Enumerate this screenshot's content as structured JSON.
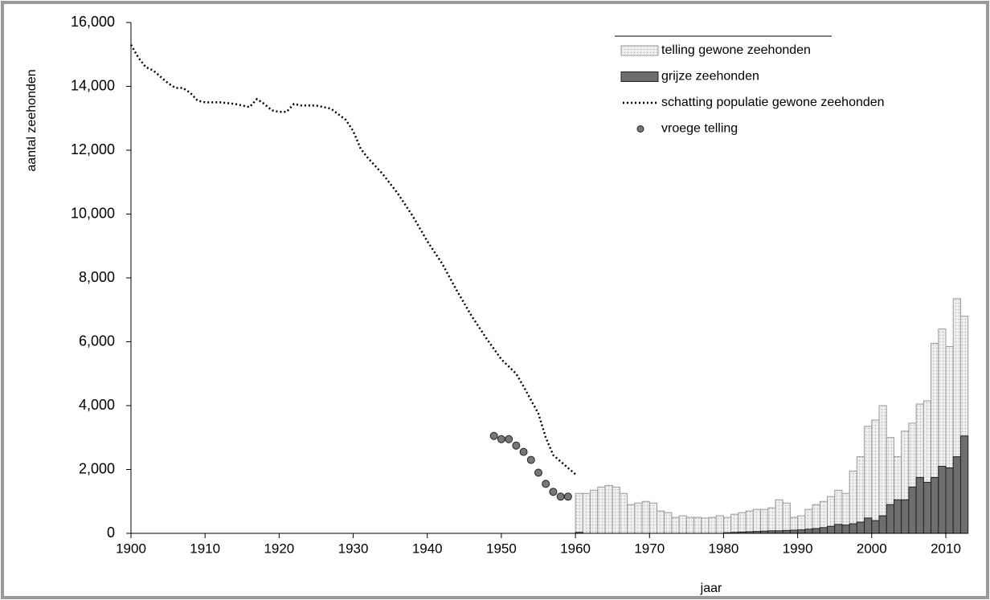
{
  "chart_data": {
    "type": "mixed",
    "y_label": "aantal zeehonden",
    "x_label": "jaar",
    "xlim": [
      1900,
      2013
    ],
    "ylim": [
      0,
      16000
    ],
    "xticks": [
      1900,
      1910,
      1920,
      1930,
      1940,
      1950,
      1960,
      1970,
      1980,
      1990,
      2000,
      2010
    ],
    "yticks": [
      0,
      {
        "value": 2000,
        "label": "2,000"
      },
      {
        "value": 4000,
        "label": "4,000"
      },
      {
        "value": 6000,
        "label": "6,000"
      },
      {
        "value": 8000,
        "label": "8,000"
      },
      {
        "value": 10000,
        "label": "10,000"
      },
      {
        "value": 12000,
        "label": "12,000"
      },
      {
        "value": 14000,
        "label": "14,000"
      },
      {
        "value": 16000,
        "label": "16,000"
      }
    ],
    "legend": "top-right",
    "series": [
      {
        "name": "telling gewone zeehonden",
        "kind": "bar",
        "color": "#e6e6e6",
        "x": [
          1960,
          1961,
          1962,
          1963,
          1964,
          1965,
          1966,
          1967,
          1968,
          1969,
          1970,
          1971,
          1972,
          1973,
          1974,
          1975,
          1976,
          1977,
          1978,
          1979,
          1980,
          1981,
          1982,
          1983,
          1984,
          1985,
          1986,
          1987,
          1988,
          1989,
          1990,
          1991,
          1992,
          1993,
          1994,
          1995,
          1996,
          1997,
          1998,
          1999,
          2000,
          2001,
          2002,
          2003,
          2004,
          2005,
          2006,
          2007,
          2008,
          2009,
          2010,
          2011,
          2012
        ],
        "values": [
          1250,
          1250,
          1350,
          1450,
          1500,
          1450,
          1250,
          900,
          950,
          1000,
          950,
          700,
          650,
          500,
          550,
          500,
          500,
          480,
          500,
          550,
          500,
          600,
          650,
          700,
          750,
          750,
          800,
          1050,
          950,
          500,
          550,
          750,
          900,
          1000,
          1150,
          1350,
          1250,
          1950,
          2400,
          3350,
          3550,
          4000,
          3000,
          2400,
          3200,
          3450,
          4050,
          4150,
          5950,
          6400,
          5850,
          7350,
          6800
        ]
      },
      {
        "name": "grijze zeehonden",
        "kind": "bar",
        "color": "#6e6e6e",
        "x": [
          1960,
          1961,
          1962,
          1963,
          1964,
          1965,
          1966,
          1967,
          1968,
          1969,
          1970,
          1971,
          1972,
          1973,
          1974,
          1975,
          1976,
          1977,
          1978,
          1979,
          1980,
          1981,
          1982,
          1983,
          1984,
          1985,
          1986,
          1987,
          1988,
          1989,
          1990,
          1991,
          1992,
          1993,
          1994,
          1995,
          1996,
          1997,
          1998,
          1999,
          2000,
          2001,
          2002,
          2003,
          2004,
          2005,
          2006,
          2007,
          2008,
          2009,
          2010,
          2011,
          2012
        ],
        "values": [
          30,
          null,
          null,
          null,
          null,
          null,
          null,
          null,
          null,
          null,
          null,
          null,
          null,
          null,
          null,
          null,
          null,
          null,
          null,
          null,
          20,
          30,
          40,
          50,
          60,
          70,
          80,
          80,
          90,
          100,
          110,
          130,
          150,
          180,
          220,
          280,
          260,
          300,
          350,
          480,
          400,
          550,
          900,
          1050,
          1050,
          1450,
          1750,
          1600,
          1750,
          2100,
          2050,
          2400,
          3050
        ]
      },
      {
        "name": "schatting populatie gewone zeehonden",
        "kind": "line",
        "color": "#000000",
        "x": [
          1900,
          1901,
          1902,
          1903,
          1904,
          1905,
          1906,
          1907,
          1908,
          1909,
          1910,
          1912,
          1914,
          1916,
          1917,
          1918,
          1919,
          1920,
          1921,
          1922,
          1923,
          1925,
          1927,
          1929,
          1930,
          1931,
          1932,
          1934,
          1936,
          1938,
          1940,
          1942,
          1944,
          1946,
          1948,
          1950,
          1952,
          1953,
          1955,
          1956,
          1957,
          1958,
          1959,
          1960
        ],
        "values": [
          15300,
          14900,
          14600,
          14500,
          14300,
          14100,
          13950,
          13950,
          13800,
          13550,
          13500,
          13500,
          13450,
          13350,
          13600,
          13450,
          13250,
          13200,
          13200,
          13450,
          13400,
          13400,
          13300,
          12950,
          12600,
          12050,
          11750,
          11250,
          10650,
          9950,
          9150,
          8450,
          7600,
          6800,
          6100,
          5450,
          5000,
          4600,
          3750,
          3000,
          2450,
          2250,
          2050,
          1850
        ]
      },
      {
        "name": "vroege telling",
        "kind": "scatter",
        "color": "#777777",
        "x": [
          1949,
          1950,
          1951,
          1952,
          1953,
          1954,
          1955,
          1956,
          1957,
          1958,
          1959
        ],
        "values": [
          3050,
          2950,
          2950,
          2750,
          2550,
          2300,
          1900,
          1550,
          1300,
          1150,
          1150
        ]
      }
    ]
  }
}
